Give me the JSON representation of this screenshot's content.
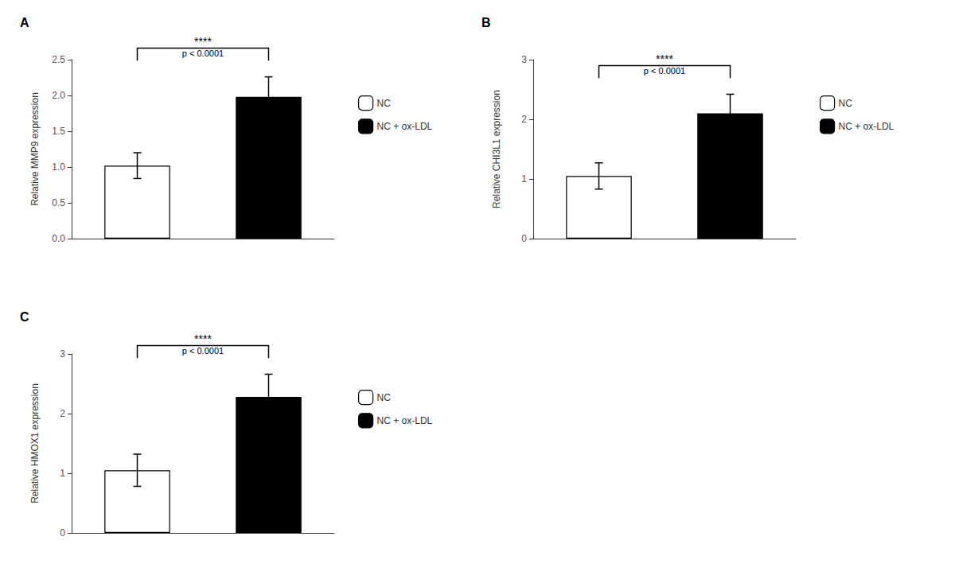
{
  "chart_data": [
    {
      "type": "bar",
      "title": "A",
      "ylabel": "Relative MMP9 expression",
      "categories": [
        null,
        null
      ],
      "series": [
        {
          "name": "NC",
          "color": "white",
          "values": [
            1.02,
            null
          ],
          "errors": [
            0.18,
            null
          ]
        },
        {
          "name": "NC + ox-LDL",
          "color": "black",
          "values": [
            null,
            1.98
          ],
          "errors": [
            null,
            0.28
          ]
        }
      ],
      "ylim": [
        0,
        2.5
      ],
      "yticks": [
        {
          "value": 0,
          "label": "0.0"
        },
        0.5,
        {
          "value": 1,
          "label": "1.0"
        },
        1.5,
        {
          "value": 2,
          "label": "2.0"
        },
        2.5
      ],
      "annotations": [
        "****",
        "p < 0.0001"
      ],
      "grid": false,
      "legend": "right",
      "tick_labels": "y"
    },
    {
      "type": "bar",
      "title": "B",
      "ylabel": "Relative CHI3L1 expression",
      "categories": [
        null,
        null
      ],
      "series": [
        {
          "name": "NC",
          "color": "white",
          "values": [
            1.05,
            null
          ],
          "errors": [
            0.22,
            null
          ]
        },
        {
          "name": "NC + ox-LDL",
          "color": "black",
          "values": [
            null,
            2.1
          ],
          "errors": [
            null,
            0.32
          ]
        }
      ],
      "ylim": [
        0,
        3.0
      ],
      "yticks": [
        0,
        1,
        2,
        3
      ],
      "annotations": [
        "****",
        "p < 0.0001"
      ],
      "grid": false,
      "legend": "right",
      "tick_labels": "y"
    },
    {
      "type": "bar",
      "title": "C",
      "ylabel": "Relative HMOX1 expression",
      "categories": [
        null,
        null
      ],
      "series": [
        {
          "name": "NC",
          "color": "white",
          "values": [
            1.05,
            null
          ],
          "errors": [
            0.27,
            null
          ]
        },
        {
          "name": "NC + ox-LDL",
          "color": "black",
          "values": [
            null,
            2.28
          ],
          "errors": [
            null,
            0.38
          ]
        }
      ],
      "ylim": [
        0,
        3.0
      ],
      "yticks": [
        0,
        1,
        2,
        3
      ],
      "annotations": [
        "****",
        "p < 0.0001"
      ],
      "grid": false,
      "legend": "right",
      "tick_labels": "y"
    }
  ]
}
